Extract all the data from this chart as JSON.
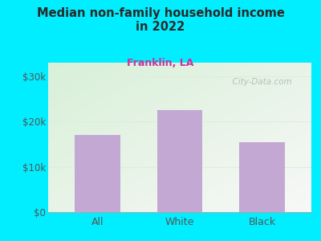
{
  "categories": [
    "All",
    "White",
    "Black"
  ],
  "values": [
    17000,
    22500,
    15500
  ],
  "bar_color": "#c4a8d4",
  "title": "Median non-family household income\nin 2022",
  "subtitle": "Franklin, LA",
  "title_color": "#2a2a2a",
  "subtitle_color": "#cc3399",
  "background_color": "#00eeff",
  "yticks": [
    0,
    10000,
    20000,
    30000
  ],
  "ytick_labels": [
    "$0",
    "$10k",
    "$20k",
    "$30k"
  ],
  "ylim": [
    0,
    33000
  ],
  "watermark": "City-Data.com",
  "watermark_color": "#b0b8b0",
  "grid_color": "#ddeedd",
  "tick_color": "#555555",
  "plot_bg_color": "#f0f8f0",
  "spine_color": "#aaaaaa"
}
